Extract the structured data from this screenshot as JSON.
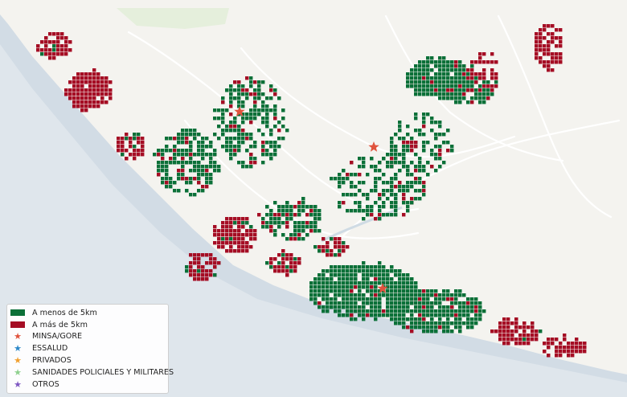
{
  "map": {
    "colors": {
      "land": "#f4f3ef",
      "sea": "#dfe6ec",
      "coast_band": "#d2dce5",
      "road": "#ffffff",
      "park": "#e5efdc",
      "near": "#0b7038",
      "far": "#a50d24",
      "star": "#e0533d"
    },
    "legend": [
      {
        "label": "A menos de 5km",
        "type": "rect",
        "color": "#0b7038"
      },
      {
        "label": "A más de 5km",
        "type": "rect",
        "color": "#a50d24"
      },
      {
        "label": "MINSA/GORE",
        "type": "star",
        "color": "#e0533d"
      },
      {
        "label": "ESSALUD",
        "type": "star",
        "color": "#2b87c8"
      },
      {
        "label": "PRIVADOS",
        "type": "star",
        "color": "#f0a030"
      },
      {
        "label": "SANIDADES POLICIALES Y MILITARES",
        "type": "star",
        "color": "#8ed08e"
      },
      {
        "label": "OTROS",
        "type": "star",
        "color": "#7e57c2"
      }
    ]
  }
}
